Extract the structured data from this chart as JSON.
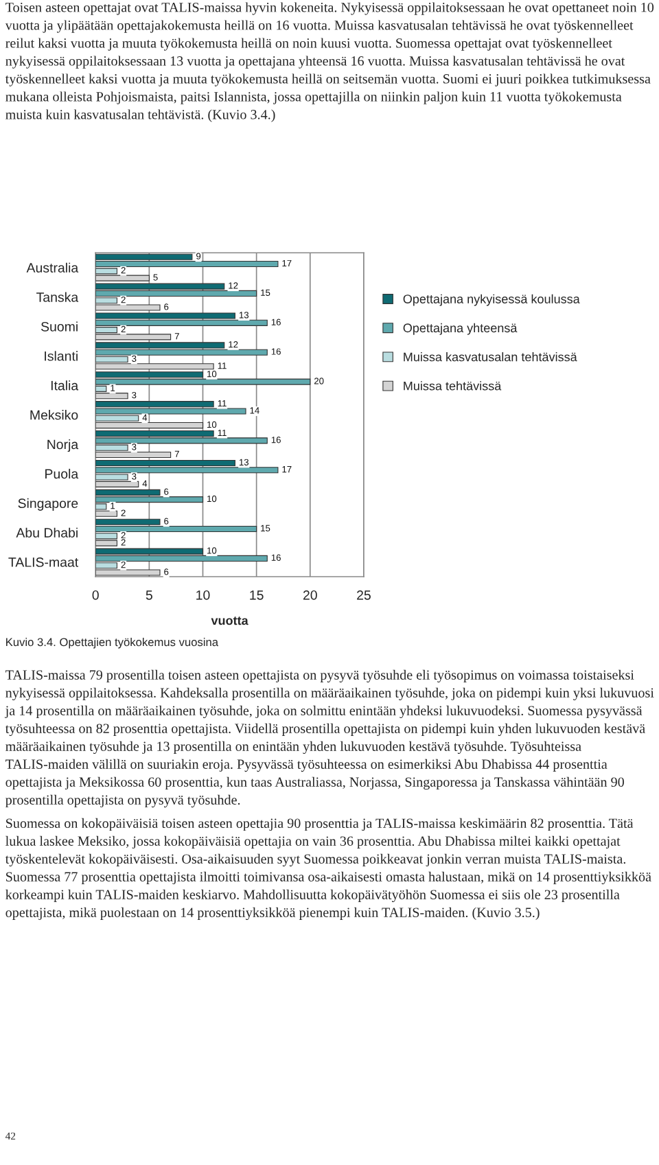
{
  "chart_data": {
    "type": "bar",
    "orientation": "horizontal",
    "title": "Kuvio 3.4. Opettajien työkokemus vuosina",
    "xlabel": "vuotta",
    "categories": [
      "Australia",
      "Tanska",
      "Suomi",
      "Islanti",
      "Italia",
      "Meksiko",
      "Norja",
      "Puola",
      "Singapore",
      "Abu Dhabi",
      "TALIS-maat"
    ],
    "series": [
      {
        "name": "Opettajana nykyisessä koulussa",
        "color": "#0f6b73",
        "values": [
          9,
          12,
          13,
          12,
          10,
          11,
          11,
          13,
          6,
          6,
          10
        ]
      },
      {
        "name": "Opettajana yhteensä",
        "color": "#5fa9ae",
        "values": [
          17,
          15,
          16,
          16,
          20,
          14,
          16,
          17,
          10,
          15,
          16
        ]
      },
      {
        "name": "Muissa kasvatusalan tehtävissä",
        "color": "#b9dde0",
        "values": [
          2,
          2,
          2,
          3,
          1,
          4,
          3,
          3,
          1,
          2,
          2
        ]
      },
      {
        "name": "Muissa tehtävissä",
        "color": "#d4d4d4",
        "values": [
          5,
          6,
          7,
          11,
          3,
          10,
          7,
          4,
          2,
          2,
          6
        ]
      }
    ],
    "xlim": [
      0,
      25
    ],
    "xticks": [
      0,
      5,
      10,
      15,
      20,
      25
    ],
    "grid": "x",
    "legend": "right",
    "data_labels": true,
    "annotations": [
      "Toisen asteen opettajat ovat TALIS-maissa hyvin kokeneita. Nykyisessä oppilaitoksessaan he ovat opettaneet noin 10 vuotta ja ylipäätään opettajakokemusta heillä on 16 vuotta. Muissa kasvatusalan tehtävissä he ovat työskennelleet reilut kaksi vuotta ja muuta työkokemusta heillä on noin kuusi vuotta. Suomessa opettajat ovat työskennelleet nykyisessä oppilaitoksessaan 13 vuotta ja opettajana yhteensä 16 vuotta. Muissa kasvatusalan tehtävissä he ovat työskennelleet kaksi vuotta ja muuta työkokemusta heillä on seitsemän vuotta. Suomi ei juuri poikkea tutkimuksessa mukana olleista Pohjoismaista, paitsi Islannista, jossa opettajilla on niinkin paljon kuin 11 vuotta työkokemusta muista kuin kasvatusalan tehtävistä. (Kuvio 3.4.)",
      "TALIS-maissa 79 prosentilla toisen asteen opettajista on pysyvä työsuhde eli työsopimus on voimassa toistaiseksi nykyisessä oppilaitoksessa. Kahdeksalla prosentilla on määräaikainen työsuhde, joka on pidempi kuin yksi lukuvuosi ja 14 prosentilla on määräaikainen työsuhde, joka on solmittu enintään yhdeksi lukuvuodeksi. Suomessa pysyvässä työsuhteessa on 82 prosenttia opettajista. Viidellä prosentilla opettajista on pidempi kuin yhden lukuvuoden kestävä määräaikainen työsuhde ja 13 prosentilla on enintään yhden lukuvuoden kestävä työsuhde. Työsuhteissa TALIS-maiden välillä on suuriakin eroja. Pysyvässä työsuhteessa on esimerkiksi Abu Dhabissa 44 prosenttia opettajista ja Meksikossa 60 prosenttia, kun taas Australiassa, Norjassa, Singaporessa ja Tanskassa vähintään 90 prosentilla opettajista on pysyvä työsuhde.",
      "Suomessa on kokopäiväisiä toisen asteen opettajia 90 prosenttia ja TALIS-maissa keskimäärin 82 prosenttia. Tätä lukua laskee Meksiko, jossa kokopäiväisiä opettajia on vain 36 prosenttia. Abu Dhabissa miltei kaikki opettajat työskentelevät kokopäiväisesti. Osa-aikaisuuden syyt Suomessa poikkeavat jonkin verran muista TALIS-maista. Suomessa 77 prosenttia opettajista ilmoitti toimivansa osa-aikaisesti omasta halustaan, mikä on 14 prosenttiyksikköä korkeampi kuin TALIS-maiden keskiarvo. Mahdollisuutta kokopäivätyöhön Suomessa ei siis ole 23 prosentilla opettajista, mikä puolestaan on 14 prosenttiyksikköä pienempi kuin TALIS-maiden. (Kuvio 3.5.)",
      "42"
    ]
  }
}
